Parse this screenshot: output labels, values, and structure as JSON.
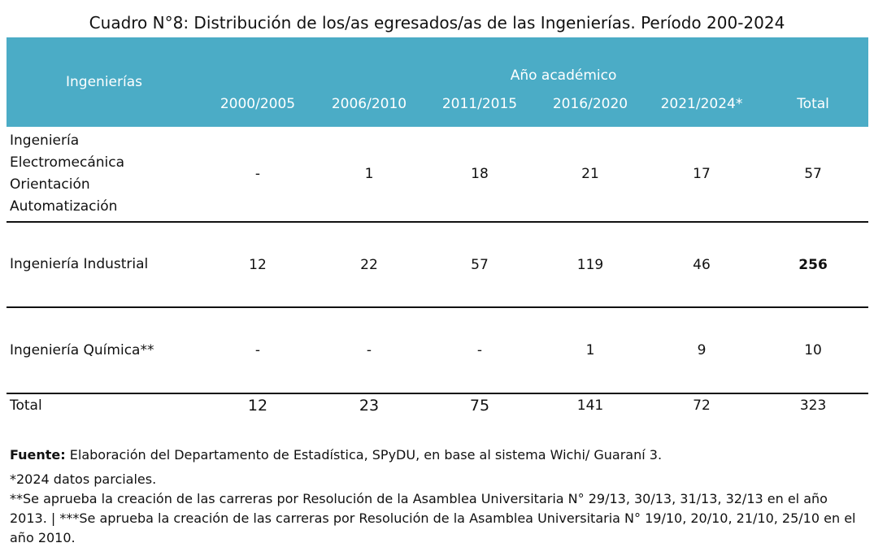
{
  "title": "Cuadro N°8: Distribución de los/as egresados/as de las Ingenierías. Período 200-2024",
  "table": {
    "header_row_label": "Ingenierías",
    "group_label": "Año académico",
    "columns": [
      "2000/2005",
      "2006/2010",
      "2011/2015",
      "2016/2020",
      "2021/2024*",
      "Total"
    ],
    "rows": [
      {
        "label": "Ingeniería Electromecánica Orientación Automatización",
        "values": [
          "-",
          "1",
          "18",
          "21",
          "17",
          "57"
        ]
      },
      {
        "label": "Ingeniería Industrial",
        "values": [
          "12",
          "22",
          "57",
          "119",
          "46",
          "256"
        ]
      },
      {
        "label": "Ingeniería Química**",
        "values": [
          "-",
          "-",
          "-",
          "1",
          "9",
          "10"
        ]
      }
    ],
    "total_row": {
      "label": "Total",
      "values": [
        "12",
        "23",
        "75",
        "141",
        "72",
        "323"
      ]
    }
  },
  "notes": {
    "source_label": "Fuente:",
    "source_text": " Elaboración del Departamento de Estadística, SPyDU, en base al sistema Wichi/ Guaraní 3.",
    "note1": "*2024 datos parciales.",
    "note2": "**Se aprueba la creación de las carreras por Resolución de la Asamblea Universitaria N° 29/13, 30/13, 31/13, 32/13 en el año 2013. | ***Se aprueba la creación de las carreras por Resolución de la Asamblea Universitaria N° 19/10, 20/10, 21/10, 25/10 en el año 2010."
  }
}
